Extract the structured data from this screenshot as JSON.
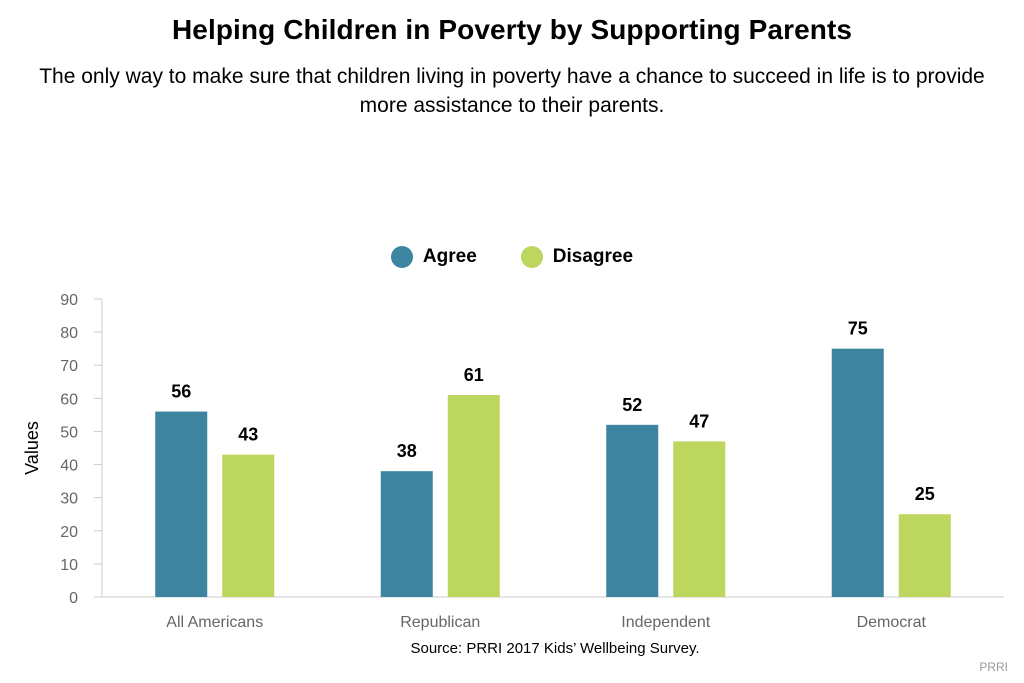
{
  "colors": {
    "agree": "#3c84a0",
    "disagree": "#bdd65e",
    "axis": "#cccccc"
  },
  "chart_data": {
    "type": "bar",
    "title": "Helping Children in Poverty by Supporting Parents",
    "subtitle": "The only way to make sure that children living in poverty have a chance to succeed in life is to provide more assistance to their parents.",
    "categories": [
      "All Americans",
      "Republican",
      "Independent",
      "Democrat"
    ],
    "series": [
      {
        "name": "Agree",
        "values": [
          56,
          38,
          52,
          75
        ]
      },
      {
        "name": "Disagree",
        "values": [
          43,
          61,
          47,
          25
        ]
      }
    ],
    "xlabel": "",
    "ylabel": "Values",
    "ylim": [
      0,
      90
    ],
    "yticks": [
      0,
      10,
      20,
      30,
      40,
      50,
      60,
      70,
      80,
      90
    ],
    "legend": "top-center",
    "grid": false,
    "source": "Source: PRRI 2017 Kids’ Wellbeing Survey.",
    "credit": "PRRI"
  }
}
